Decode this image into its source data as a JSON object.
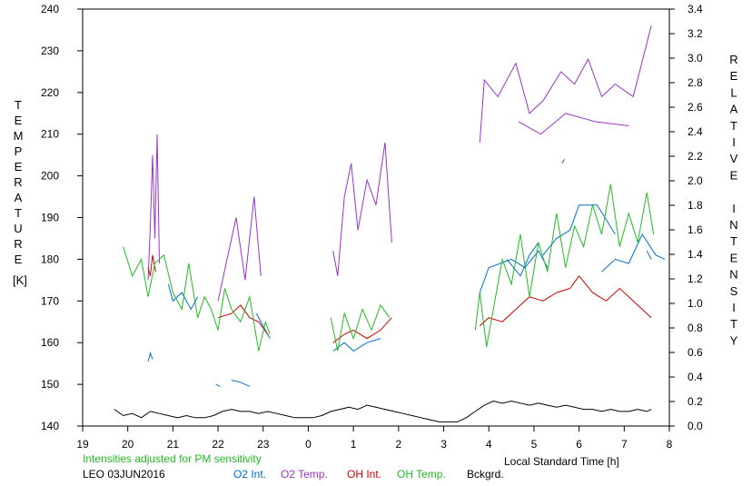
{
  "chart_data": {
    "type": "line",
    "ylabel_left": "TEMPERATURE",
    "ylabel_left_unit": "[K]",
    "ylabel_right": "RELATIVE INTENSITY",
    "xlabel": "Local Standard Time [h]",
    "x_tick_labels": [
      "19",
      "20",
      "21",
      "22",
      "23",
      "0",
      "1",
      "2",
      "3",
      "4",
      "5",
      "6",
      "7",
      "8"
    ],
    "x_range_hours": [
      19,
      32
    ],
    "ylim_left": [
      140,
      240
    ],
    "yticks_left": [
      140,
      150,
      160,
      170,
      180,
      190,
      200,
      210,
      220,
      230,
      240
    ],
    "ylim_right": [
      0.0,
      3.4
    ],
    "yticks_right": [
      "0.0",
      "0.2",
      "0.4",
      "0.6",
      "0.8",
      "1.0",
      "1.2",
      "1.4",
      "1.6",
      "1.8",
      "2.0",
      "2.2",
      "2.4",
      "2.6",
      "2.8",
      "3.0",
      "3.2",
      "3.4"
    ],
    "grid": false,
    "series": [
      {
        "name": "O2 Int.",
        "color": "#0070d0",
        "axis": "left",
        "segments": [
          [
            [
              20.45,
              155.5
            ],
            [
              20.5,
              157.5
            ],
            [
              20.55,
              156
            ]
          ],
          [
            [
              21.95,
              150
            ],
            [
              22.05,
              149.5
            ]
          ],
          [
            [
              22.3,
              151
            ],
            [
              22.5,
              150.5
            ],
            [
              22.7,
              149.5
            ]
          ],
          [
            [
              20.9,
              174
            ],
            [
              21.0,
              170
            ],
            [
              21.2,
              172
            ],
            [
              21.4,
              168
            ],
            [
              21.55,
              171
            ]
          ],
          [
            [
              22.85,
              167
            ],
            [
              23.15,
              161
            ]
          ],
          [
            [
              30.5,
              177
            ],
            [
              30.8,
              180
            ],
            [
              31.1,
              179
            ],
            [
              31.4,
              186
            ],
            [
              31.7,
              181
            ],
            [
              31.9,
              180
            ]
          ],
          [
            [
              24.55,
              158
            ],
            [
              24.8,
              160
            ],
            [
              25.0,
              158
            ],
            [
              25.3,
              160
            ],
            [
              25.6,
              161
            ]
          ],
          [
            [
              27.8,
              172
            ],
            [
              28.0,
              178
            ],
            [
              28.5,
              180
            ],
            [
              28.8,
              178
            ],
            [
              29.1,
              182
            ],
            [
              29.3,
              178
            ]
          ],
          [
            [
              28.4,
              180
            ],
            [
              28.7,
              176
            ],
            [
              28.9,
              181
            ],
            [
              29.1,
              184
            ]
          ],
          [
            [
              29.2,
              181
            ],
            [
              29.5,
              185
            ],
            [
              29.8,
              187
            ],
            [
              30.0,
              193
            ],
            [
              30.4,
              193
            ],
            [
              30.8,
              186
            ]
          ],
          [
            [
              31.5,
              182
            ],
            [
              31.6,
              180
            ]
          ]
        ]
      },
      {
        "name": "O2 Temp.",
        "color": "#9933cc",
        "axis": "left",
        "segments": [
          [
            [
              20.45,
              175
            ],
            [
              20.5,
              188
            ],
            [
              20.55,
              205
            ],
            [
              20.6,
              185
            ],
            [
              20.65,
              210
            ],
            [
              20.7,
              179
            ]
          ],
          [
            [
              22.0,
              170
            ],
            [
              22.2,
              180
            ],
            [
              22.4,
              190
            ],
            [
              22.6,
              175
            ],
            [
              22.8,
              195
            ],
            [
              22.95,
              176
            ]
          ],
          [
            [
              24.55,
              182
            ],
            [
              24.65,
              176
            ],
            [
              24.8,
              195
            ],
            [
              24.95,
              203
            ],
            [
              25.1,
              187
            ],
            [
              25.3,
              199
            ],
            [
              25.5,
              193
            ],
            [
              25.7,
              208
            ],
            [
              25.85,
              184
            ]
          ],
          [
            [
              27.8,
              208
            ],
            [
              27.9,
              223
            ],
            [
              28.2,
              219
            ],
            [
              28.6,
              227
            ],
            [
              28.9,
              215
            ],
            [
              29.2,
              218
            ],
            [
              29.6,
              225
            ],
            [
              29.9,
              222
            ],
            [
              30.2,
              228
            ],
            [
              30.5,
              219
            ],
            [
              30.8,
              222
            ],
            [
              31.2,
              219
            ],
            [
              31.6,
              236
            ]
          ],
          [
            [
              28.66,
              213
            ],
            [
              29.15,
              210
            ],
            [
              29.7,
              215
            ],
            [
              30.35,
              213
            ],
            [
              31.1,
              212
            ]
          ],
          [
            [
              29.62,
              203
            ],
            [
              29.68,
              204
            ]
          ]
        ]
      },
      {
        "name": "OH Int.",
        "color": "#cc0000",
        "axis": "left",
        "segments": [
          [
            [
              20.45,
              178
            ],
            [
              20.5,
              176
            ],
            [
              20.55,
              181
            ],
            [
              20.62,
              177
            ]
          ],
          [
            [
              22.0,
              166
            ],
            [
              22.3,
              167
            ],
            [
              22.5,
              169
            ],
            [
              22.7,
              166
            ],
            [
              22.9,
              165
            ],
            [
              23.1,
              162
            ]
          ],
          [
            [
              24.55,
              160
            ],
            [
              24.8,
              162
            ],
            [
              25.0,
              163
            ],
            [
              25.3,
              161
            ],
            [
              25.6,
              163
            ],
            [
              25.85,
              166
            ]
          ],
          [
            [
              27.8,
              164
            ],
            [
              28.0,
              166
            ],
            [
              28.3,
              165
            ],
            [
              28.6,
              168
            ],
            [
              28.9,
              171
            ],
            [
              29.2,
              170
            ],
            [
              29.5,
              172
            ],
            [
              29.8,
              173
            ],
            [
              30.0,
              176
            ],
            [
              30.3,
              172
            ],
            [
              30.6,
              170
            ],
            [
              30.9,
              173
            ],
            [
              31.2,
              170
            ],
            [
              31.4,
              168
            ],
            [
              31.6,
              166
            ]
          ]
        ]
      },
      {
        "name": "OH Temp.",
        "color": "#22bb22",
        "axis": "left",
        "segments": [
          [
            [
              19.9,
              183
            ],
            [
              20.1,
              176
            ],
            [
              20.3,
              180
            ],
            [
              20.45,
              171
            ],
            [
              20.6,
              179
            ],
            [
              20.8,
              181
            ],
            [
              21.0,
              172
            ],
            [
              21.2,
              168
            ],
            [
              21.35,
              179
            ],
            [
              21.55,
              166
            ],
            [
              21.7,
              171
            ],
            [
              21.85,
              168
            ],
            [
              22.0,
              163
            ],
            [
              22.15,
              173
            ],
            [
              22.3,
              168
            ],
            [
              22.5,
              165
            ],
            [
              22.7,
              171
            ],
            [
              22.9,
              158
            ],
            [
              23.05,
              165
            ],
            [
              23.15,
              162
            ]
          ],
          [
            [
              24.5,
              166
            ],
            [
              24.65,
              158
            ],
            [
              24.8,
              167
            ],
            [
              25.0,
              161
            ],
            [
              25.2,
              168
            ],
            [
              25.4,
              163
            ],
            [
              25.6,
              169
            ],
            [
              25.8,
              166
            ]
          ],
          [
            [
              27.7,
              163
            ],
            [
              27.8,
              172
            ],
            [
              27.95,
              159
            ],
            [
              28.1,
              168
            ],
            [
              28.3,
              180
            ],
            [
              28.5,
              174
            ],
            [
              28.7,
              186
            ],
            [
              28.9,
              171
            ],
            [
              29.1,
              184
            ],
            [
              29.3,
              177
            ],
            [
              29.5,
              191
            ],
            [
              29.7,
              178
            ],
            [
              29.9,
              188
            ],
            [
              30.1,
              183
            ],
            [
              30.3,
              193
            ],
            [
              30.5,
              186
            ],
            [
              30.7,
              198
            ],
            [
              30.9,
              183
            ],
            [
              31.1,
              191
            ],
            [
              31.3,
              184
            ],
            [
              31.5,
              196
            ],
            [
              31.65,
              186
            ]
          ]
        ]
      },
      {
        "name": "Bckgrd.",
        "color": "#000000",
        "axis": "left",
        "segments": [
          [
            [
              19.7,
              144
            ],
            [
              19.9,
              142.5
            ],
            [
              20.1,
              143
            ],
            [
              20.3,
              142
            ],
            [
              20.5,
              143.5
            ],
            [
              20.7,
              143
            ],
            [
              20.9,
              142.5
            ],
            [
              21.1,
              142
            ],
            [
              21.3,
              142.5
            ],
            [
              21.5,
              142
            ],
            [
              21.7,
              142
            ],
            [
              21.9,
              142.5
            ],
            [
              22.1,
              143.5
            ],
            [
              22.3,
              144
            ],
            [
              22.5,
              143.5
            ],
            [
              22.7,
              143.5
            ],
            [
              22.9,
              143
            ],
            [
              23.1,
              143.5
            ],
            [
              23.3,
              143
            ],
            [
              23.5,
              142.5
            ],
            [
              23.7,
              142
            ],
            [
              23.9,
              142
            ],
            [
              24.1,
              142
            ],
            [
              24.3,
              142.5
            ],
            [
              24.5,
              143.5
            ],
            [
              24.7,
              144
            ],
            [
              24.9,
              144.5
            ],
            [
              25.1,
              144
            ],
            [
              25.3,
              145
            ],
            [
              25.5,
              144.5
            ],
            [
              25.7,
              144
            ],
            [
              25.9,
              143.5
            ],
            [
              26.1,
              143
            ],
            [
              26.3,
              142.5
            ],
            [
              26.5,
              142
            ],
            [
              26.7,
              141.5
            ],
            [
              26.9,
              141
            ],
            [
              27.1,
              141
            ],
            [
              27.3,
              141
            ],
            [
              27.5,
              142
            ],
            [
              27.7,
              143.5
            ],
            [
              27.9,
              145
            ],
            [
              28.1,
              146
            ],
            [
              28.3,
              145.5
            ],
            [
              28.5,
              146
            ],
            [
              28.7,
              145.5
            ],
            [
              28.9,
              145
            ],
            [
              29.1,
              145.5
            ],
            [
              29.3,
              145
            ],
            [
              29.5,
              144.5
            ],
            [
              29.7,
              145
            ],
            [
              29.9,
              144.5
            ],
            [
              30.1,
              144
            ],
            [
              30.3,
              144
            ],
            [
              30.5,
              143.5
            ],
            [
              30.7,
              144
            ],
            [
              30.9,
              143.5
            ],
            [
              31.1,
              143.5
            ],
            [
              31.3,
              144
            ],
            [
              31.5,
              143.5
            ],
            [
              31.6,
              144
            ]
          ]
        ]
      }
    ]
  },
  "footer": {
    "note": "Intensities adjusted for PM sensitivity",
    "station": "LEO 03JUN2016",
    "legend": [
      {
        "label": "O2 Int.",
        "color": "#0070d0"
      },
      {
        "label": "O2 Temp.",
        "color": "#9933cc"
      },
      {
        "label": "OH Int.",
        "color": "#cc0000"
      },
      {
        "label": "OH Temp.",
        "color": "#22bb22"
      },
      {
        "label": "Bckgrd.",
        "color": "#000000"
      }
    ],
    "note_color": "#22bb22"
  }
}
